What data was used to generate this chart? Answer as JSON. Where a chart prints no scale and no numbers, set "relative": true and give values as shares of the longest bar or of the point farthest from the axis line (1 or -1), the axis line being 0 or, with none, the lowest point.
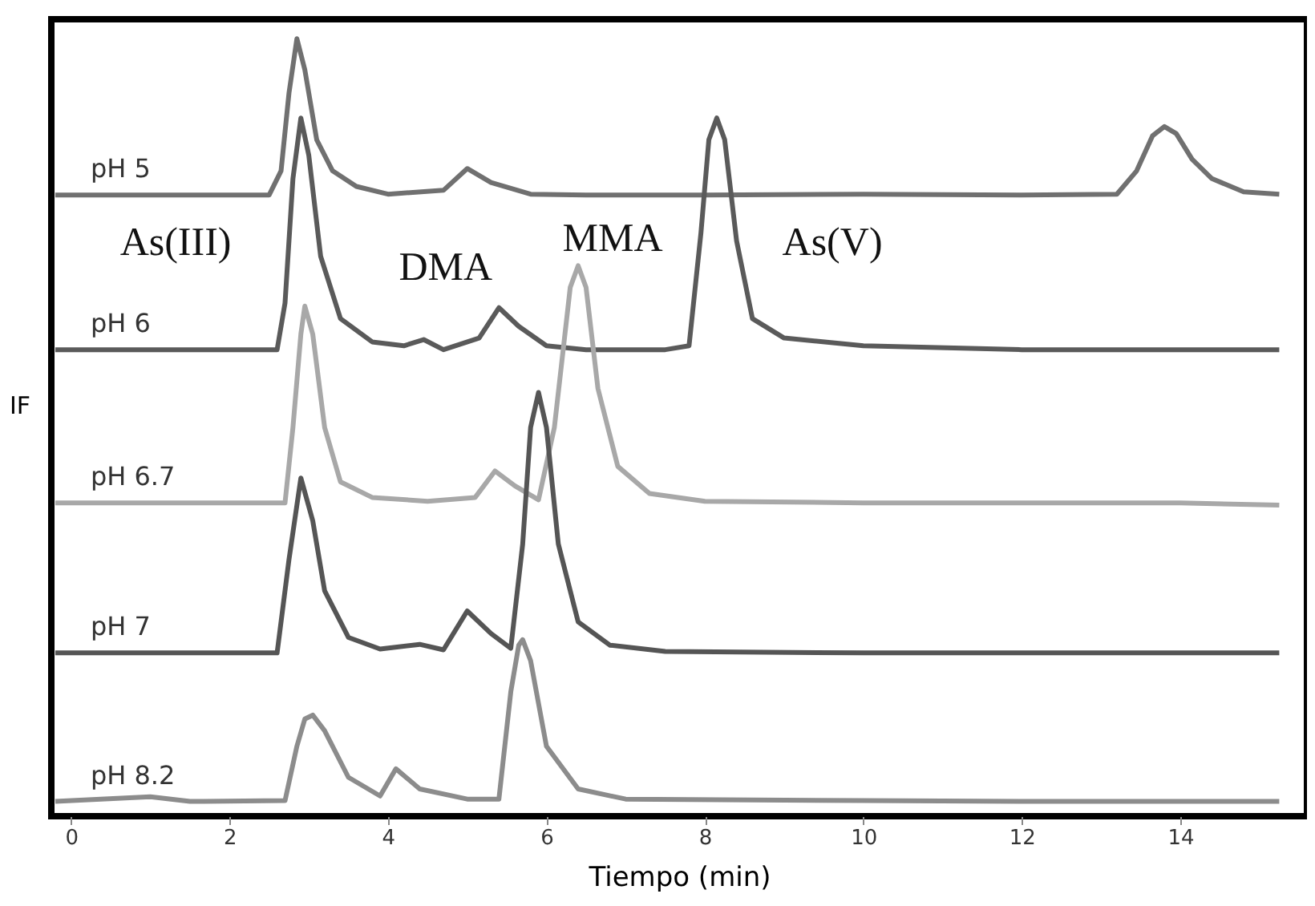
{
  "chart_data": {
    "type": "line",
    "relative": true,
    "xlabel": "Tiempo (min)",
    "ylabel": "IF",
    "xlim": [
      -0.25,
      15.6
    ],
    "xticks": [
      0,
      2,
      4,
      6,
      8,
      10,
      12,
      14
    ],
    "tick_labels": "x",
    "legend": false,
    "grid": false,
    "line_style": "solid",
    "marker": "none",
    "series": [
      {
        "name": "pH 5",
        "color": "#707070",
        "x": [
          -0.2,
          2.5,
          2.65,
          2.75,
          2.85,
          2.95,
          3.1,
          3.3,
          3.6,
          4.0,
          4.7,
          5.0,
          5.3,
          5.8,
          6.5,
          8,
          10,
          12,
          13.2,
          13.45,
          13.65,
          13.8,
          13.95,
          14.15,
          14.4,
          14.8,
          15.25
        ],
        "values": [
          0.799,
          0.799,
          0.83,
          0.93,
          1.0,
          0.96,
          0.87,
          0.83,
          0.81,
          0.8,
          0.805,
          0.833,
          0.815,
          0.8,
          0.799,
          0.799,
          0.8,
          0.799,
          0.8,
          0.83,
          0.875,
          0.887,
          0.878,
          0.845,
          0.82,
          0.803,
          0.8
        ]
      },
      {
        "name": "pH 6",
        "color": "#5a5a5a",
        "x": [
          -0.2,
          2.6,
          2.7,
          2.8,
          2.9,
          3.0,
          3.15,
          3.4,
          3.8,
          4.2,
          4.45,
          4.7,
          5.15,
          5.4,
          5.65,
          6.0,
          6.5,
          7.5,
          7.8,
          7.95,
          8.05,
          8.15,
          8.25,
          8.4,
          8.6,
          9.0,
          10,
          12,
          14,
          15.25
        ],
        "values": [
          0.6,
          0.6,
          0.66,
          0.82,
          0.898,
          0.85,
          0.72,
          0.64,
          0.61,
          0.605,
          0.613,
          0.6,
          0.615,
          0.654,
          0.63,
          0.605,
          0.6,
          0.6,
          0.605,
          0.75,
          0.87,
          0.898,
          0.87,
          0.74,
          0.64,
          0.615,
          0.605,
          0.6,
          0.6,
          0.6
        ]
      },
      {
        "name": "pH 6.7",
        "color": "#a8a8a8",
        "x": [
          -0.2,
          2.7,
          2.8,
          2.9,
          2.95,
          3.05,
          3.2,
          3.4,
          3.8,
          4.5,
          5.1,
          5.35,
          5.6,
          5.9,
          6.1,
          6.3,
          6.4,
          6.5,
          6.65,
          6.9,
          7.3,
          8,
          10,
          12,
          14,
          15.25
        ],
        "values": [
          0.403,
          0.403,
          0.5,
          0.62,
          0.656,
          0.62,
          0.5,
          0.43,
          0.41,
          0.405,
          0.41,
          0.444,
          0.425,
          0.407,
          0.5,
          0.68,
          0.708,
          0.68,
          0.55,
          0.45,
          0.415,
          0.405,
          0.403,
          0.403,
          0.403,
          0.4
        ]
      },
      {
        "name": "pH 7",
        "color": "#555555",
        "x": [
          -0.2,
          2.6,
          2.75,
          2.9,
          3.05,
          3.2,
          3.5,
          3.9,
          4.4,
          4.7,
          5.0,
          5.3,
          5.55,
          5.7,
          5.8,
          5.9,
          6.0,
          6.15,
          6.4,
          6.8,
          7.5,
          10,
          12,
          15.25
        ],
        "values": [
          0.21,
          0.21,
          0.33,
          0.435,
          0.38,
          0.29,
          0.23,
          0.215,
          0.221,
          0.214,
          0.264,
          0.235,
          0.216,
          0.35,
          0.5,
          0.545,
          0.5,
          0.35,
          0.25,
          0.22,
          0.212,
          0.21,
          0.21,
          0.21
        ]
      },
      {
        "name": "pH 8.2",
        "color": "#8c8c8c",
        "x": [
          -0.2,
          1.0,
          1.5,
          2.7,
          2.85,
          2.95,
          3.05,
          3.2,
          3.5,
          3.9,
          4.1,
          4.4,
          5.0,
          5.4,
          5.55,
          5.65,
          5.7,
          5.8,
          6.0,
          6.4,
          7.0,
          10,
          12,
          15.25
        ],
        "values": [
          0.019,
          0.025,
          0.019,
          0.02,
          0.09,
          0.125,
          0.13,
          0.11,
          0.05,
          0.026,
          0.061,
          0.035,
          0.022,
          0.022,
          0.16,
          0.22,
          0.227,
          0.2,
          0.09,
          0.035,
          0.022,
          0.02,
          0.019,
          0.019
        ]
      }
    ],
    "annotations": [
      "As(III)",
      "DMA",
      "MMA",
      "As(V)"
    ]
  }
}
